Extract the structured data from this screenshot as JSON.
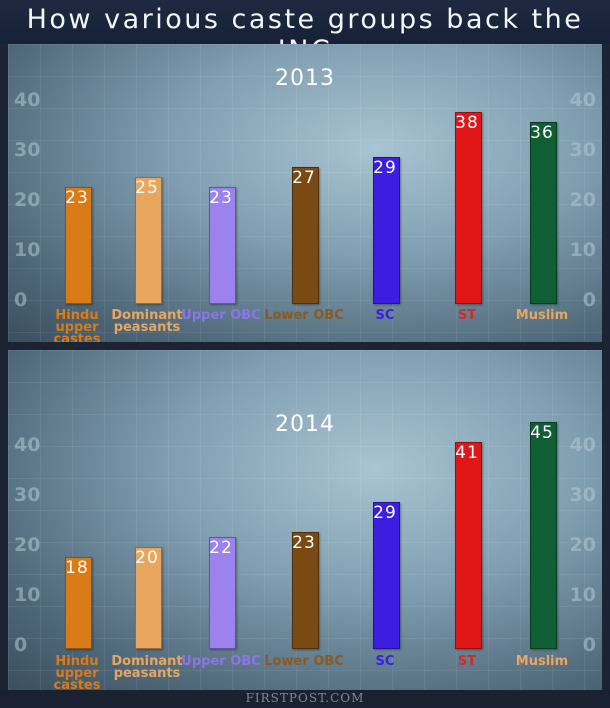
{
  "title": "How various caste groups back the INC",
  "credit": "FIRSTPOST.COM",
  "chart_data": [
    {
      "type": "bar",
      "title": "2013",
      "categories": [
        "Hindu upper castes",
        "Dominant peasants",
        "Upper OBC",
        "Lower OBC",
        "SC",
        "ST",
        "Muslim"
      ],
      "values": [
        23,
        25,
        23,
        27,
        29,
        38,
        36
      ],
      "colors": [
        "#d97b17",
        "#e9a65e",
        "#9b82ee",
        "#7a4a14",
        "#3d1ee0",
        "#e11717",
        "#0f5e34"
      ],
      "label_colors": [
        "#d97b17",
        "#e9a65e",
        "#8a76e8",
        "#8a5a22",
        "#3d1ee0",
        "#d42a24",
        "#e9a65e"
      ],
      "yticks": [
        0,
        10,
        20,
        30,
        40
      ],
      "ylim": [
        0,
        40
      ],
      "grid": false
    },
    {
      "type": "bar",
      "title": "2014",
      "categories": [
        "Hindu upper castes",
        "Dominant peasants",
        "Upper OBC",
        "Lower OBC",
        "SC",
        "ST",
        "Muslim"
      ],
      "values": [
        18,
        20,
        22,
        23,
        29,
        41,
        45
      ],
      "colors": [
        "#d97b17",
        "#e9a65e",
        "#9b82ee",
        "#7a4a14",
        "#3d1ee0",
        "#e11717",
        "#0f5e34"
      ],
      "label_colors": [
        "#d97b17",
        "#e9a65e",
        "#8a76e8",
        "#8a5a22",
        "#3d1ee0",
        "#d42a24",
        "#e9a65e"
      ],
      "yticks": [
        0,
        10,
        20,
        30,
        40
      ],
      "ylim": [
        0,
        40
      ],
      "grid": false
    }
  ]
}
